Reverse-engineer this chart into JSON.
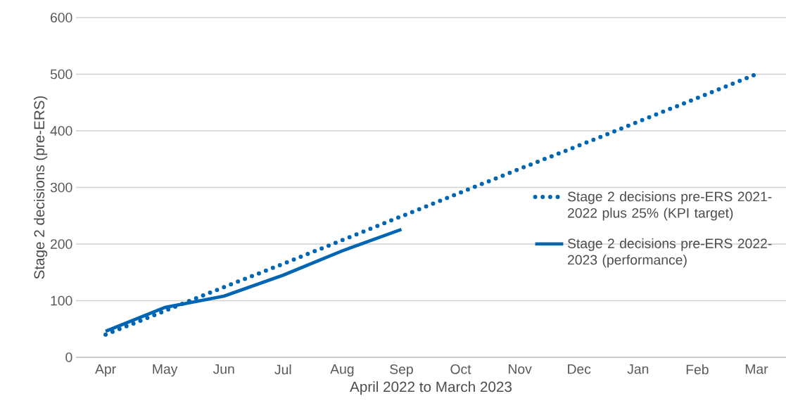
{
  "chart_data": {
    "type": "line",
    "xlabel": "April 2022 to March 2023",
    "ylabel": "Stage 2 decisions (pre-ERS)",
    "categories": [
      "Apr",
      "May",
      "Jun",
      "Jul",
      "Aug",
      "Sep",
      "Oct",
      "Nov",
      "Dec",
      "Jan",
      "Feb",
      "Mar"
    ],
    "series": [
      {
        "name": "Stage 2 decisions pre-ERS 2021-2022 plus 25% (KPI target)",
        "color": "#0066b3",
        "line_style": "dotted",
        "values": [
          40,
          82,
          124,
          165,
          207,
          249,
          291,
          333,
          374,
          416,
          458,
          500
        ]
      },
      {
        "name": "Stage 2 decisions pre-ERS 2022-2023 (performance)",
        "color": "#0066b3",
        "line_style": "solid",
        "values": [
          46,
          88,
          108,
          145,
          188,
          226,
          null,
          null,
          null,
          null,
          null,
          null
        ]
      }
    ],
    "ylim": [
      0,
      600
    ],
    "yticks": [
      0,
      100,
      200,
      300,
      400,
      500,
      600
    ],
    "grid": "y",
    "legend": "right",
    "marker": "none"
  }
}
